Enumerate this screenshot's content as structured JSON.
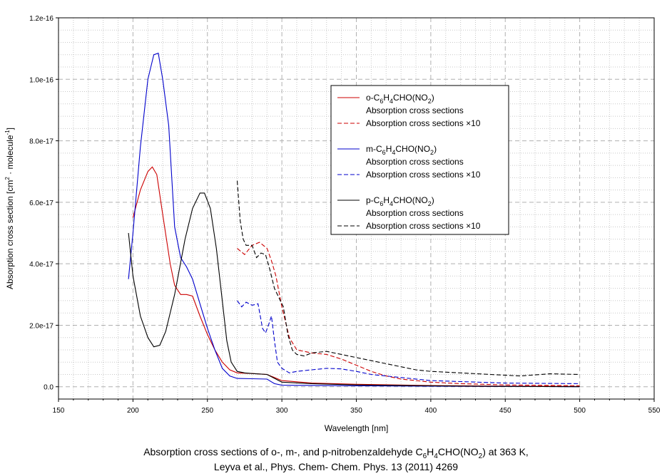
{
  "chart_data": {
    "type": "line",
    "xlabel": "Wavelength [nm]",
    "ylabel": "Absorption cross section [cm² · molecule⁻¹]",
    "xlim": [
      150,
      550
    ],
    "ylim": [
      -4e-18,
      1.2e-16
    ],
    "x_ticks": [
      150,
      200,
      250,
      300,
      350,
      400,
      450,
      500,
      550
    ],
    "y_ticks": [
      0,
      2e-17,
      4e-17,
      6e-17,
      8e-17,
      1e-16,
      1.2e-16
    ],
    "x_tick_labels": [
      "150",
      "200",
      "250",
      "300",
      "350",
      "400",
      "450",
      "500",
      "550"
    ],
    "y_tick_labels": [
      "0.0",
      "2.0e-17",
      "4.0e-17",
      "6.0e-17",
      "8.0e-17",
      "1.0e-16",
      "1.2e-16"
    ],
    "grid": true,
    "legend_position": "upper-right",
    "legend_groups": [
      {
        "compound": "o-C6H4CHO(NO2)",
        "color": "#cc0000",
        "solid_label": "Absorption cross sections",
        "dashed_label": "Absorption cross sections ×10"
      },
      {
        "compound": "m-C6H4CHO(NO2)",
        "color": "#0000cc",
        "solid_label": "Absorption cross sections",
        "dashed_label": "Absorption cross sections ×10"
      },
      {
        "compound": "p-C6H4CHO(NO2)",
        "color": "#000000",
        "solid_label": "Absorption cross sections",
        "dashed_label": "Absorption cross sections ×10"
      }
    ],
    "series": [
      {
        "name": "o-C6H4CHO(NO2)",
        "style": "solid",
        "color": "#cc0000",
        "x": [
          200,
          205,
          210,
          213,
          216,
          220,
          225,
          228,
          232,
          236,
          240,
          245,
          250,
          255,
          260,
          265,
          270,
          280,
          290,
          300,
          320,
          350,
          400,
          450,
          500
        ],
        "y": [
          5.5e-17,
          6.4e-17,
          7e-17,
          7.15e-17,
          6.9e-17,
          5.6e-17,
          4e-17,
          3.3e-17,
          3e-17,
          3e-17,
          2.95e-17,
          2.3e-17,
          1.7e-17,
          1.2e-17,
          8e-18,
          5.5e-18,
          4.5e-18,
          4.3e-18,
          4e-18,
          2e-18,
          1.2e-18,
          8e-19,
          4e-19,
          2e-19,
          1e-19
        ]
      },
      {
        "name": "o-C6H4CHO(NO2)",
        "style": "dashed",
        "color": "#cc0000",
        "x": [
          270,
          275,
          280,
          285,
          290,
          293,
          296,
          300,
          305,
          310,
          315,
          320,
          330,
          340,
          350,
          360,
          370,
          380,
          390,
          400,
          420,
          450,
          500
        ],
        "y": [
          4.5e-17,
          4.3e-17,
          4.6e-17,
          4.7e-17,
          4.5e-17,
          4.1e-17,
          3.6e-17,
          2.6e-17,
          1.6e-17,
          1.2e-17,
          1.15e-17,
          1.1e-17,
          1.05e-17,
          9e-18,
          7e-18,
          5e-18,
          3.5e-18,
          2.5e-18,
          2e-18,
          1.5e-18,
          1e-18,
          6e-19,
          3e-19
        ]
      },
      {
        "name": "m-C6H4CHO(NO2)",
        "style": "solid",
        "color": "#0000cc",
        "x": [
          197,
          200,
          205,
          210,
          214,
          217,
          220,
          224,
          228,
          232,
          236,
          240,
          245,
          250,
          255,
          260,
          265,
          270,
          280,
          290,
          295,
          300,
          350,
          400,
          450,
          500
        ],
        "y": [
          3.5e-17,
          5e-17,
          7.8e-17,
          1e-16,
          1.08e-16,
          1.085e-16,
          1e-16,
          8.5e-17,
          5.2e-17,
          4.2e-17,
          3.9e-17,
          3.5e-17,
          2.7e-17,
          1.9e-17,
          1.2e-17,
          6e-18,
          3.5e-18,
          2.7e-18,
          2.6e-18,
          2.5e-18,
          1e-18,
          5e-19,
          3e-19,
          2e-19,
          1e-19,
          0
        ]
      },
      {
        "name": "m-C6H4CHO(NO2)",
        "style": "dashed",
        "color": "#0000cc",
        "x": [
          270,
          273,
          276,
          280,
          284,
          287,
          289,
          291,
          293,
          295,
          297,
          300,
          305,
          310,
          320,
          330,
          340,
          350,
          360,
          380,
          400,
          450,
          500
        ],
        "y": [
          2.8e-17,
          2.6e-17,
          2.75e-17,
          2.65e-17,
          2.7e-17,
          1.9e-17,
          1.75e-17,
          2e-17,
          2.3e-17,
          1.5e-17,
          8e-18,
          6e-18,
          4.5e-18,
          5e-18,
          5.5e-18,
          6e-18,
          5.8e-18,
          5e-18,
          4e-18,
          3e-18,
          2e-18,
          1.2e-18,
          1e-18
        ]
      },
      {
        "name": "p-C6H4CHO(NO2)",
        "style": "solid",
        "color": "#000000",
        "x": [
          197,
          200,
          205,
          210,
          214,
          218,
          222,
          228,
          235,
          240,
          245,
          248,
          252,
          256,
          260,
          263,
          266,
          270,
          275,
          280,
          290,
          300,
          320,
          350,
          400,
          450,
          500
        ],
        "y": [
          5e-17,
          3.6e-17,
          2.3e-17,
          1.6e-17,
          1.3e-17,
          1.35e-17,
          1.8e-17,
          3e-17,
          4.8e-17,
          5.8e-17,
          6.3e-17,
          6.3e-17,
          5.8e-17,
          4.5e-17,
          2.8e-17,
          1.5e-17,
          8e-18,
          5e-18,
          4.5e-18,
          4.3e-18,
          4e-18,
          1.5e-18,
          1e-18,
          6e-19,
          3e-19,
          1e-19,
          0
        ]
      },
      {
        "name": "p-C6H4CHO(NO2)",
        "style": "dashed",
        "color": "#000000",
        "x": [
          270,
          272,
          274,
          276,
          280,
          283,
          286,
          289,
          292,
          295,
          298,
          301,
          304,
          307,
          310,
          315,
          320,
          330,
          340,
          350,
          360,
          370,
          380,
          390,
          400,
          420,
          440,
          460,
          480,
          500
        ],
        "y": [
          6.7e-17,
          5.4e-17,
          4.8e-17,
          4.6e-17,
          4.6e-17,
          4.2e-17,
          4.35e-17,
          4.3e-17,
          3.8e-17,
          3.2e-17,
          2.9e-17,
          2.6e-17,
          1.7e-17,
          1.2e-17,
          1.05e-17,
          1e-17,
          1.1e-17,
          1.15e-17,
          1.05e-17,
          9.5e-18,
          8.5e-18,
          7.5e-18,
          6.5e-18,
          5.5e-18,
          5e-18,
          4.5e-18,
          4e-18,
          3.5e-18,
          4.2e-18,
          4e-18
        ]
      }
    ]
  },
  "caption": {
    "line1_a": "Absorption cross sections of o-, m-, and p-nitrobenzaldehyde C",
    "line1_s1": "6",
    "line1_b": "H",
    "line1_s2": "4",
    "line1_c": "CHO(NO",
    "line1_s3": "2",
    "line1_d": ") at 363 K,",
    "line2": "Leyva et al., Phys. Chem- Chem. Phys. 13 (2011) 4269"
  }
}
